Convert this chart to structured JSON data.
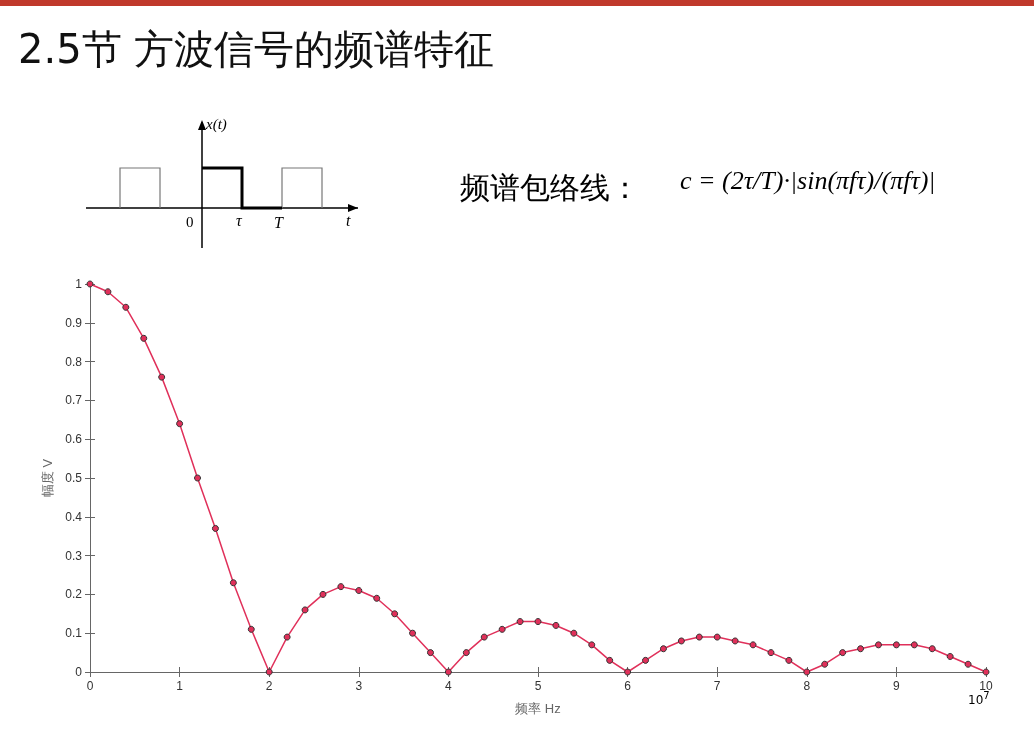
{
  "chart_data": {
    "type": "line",
    "title": "2.5节 方波信号的频谱特征",
    "xlabel": "频率 Hz",
    "ylabel": "幅度 V",
    "annotations": [
      "频谱包络线：",
      "c = (2τ/T)·|sin(πfτ)/(πfτ)|",
      "10$^{7}$",
      "x(t)",
      "0",
      "τ",
      "T",
      "t"
    ],
    "x": [
      0,
      0.2,
      0.4,
      0.6,
      0.8,
      1,
      1.2,
      1.4,
      1.6,
      1.8,
      2,
      2.2,
      2.4,
      2.6,
      2.8,
      3,
      3.2,
      3.4,
      3.6,
      3.8,
      4,
      4.2,
      4.4,
      4.6,
      4.8,
      5,
      5.2,
      5.4,
      5.6,
      5.8,
      6,
      6.2,
      6.4,
      6.6,
      6.8,
      7,
      7.2,
      7.4,
      7.6,
      7.8,
      8,
      8.2,
      8.4,
      8.6,
      8.8,
      9,
      9.2,
      9.4,
      9.6,
      9.8,
      10
    ],
    "series": [
      {
        "color": "#e0305a",
        "values": [
          1,
          0.98,
          0.94,
          0.86,
          0.76,
          0.64,
          0.5,
          0.37,
          0.23,
          0.11,
          0,
          0.09,
          0.16,
          0.2,
          0.22,
          0.21,
          0.19,
          0.15,
          0.1,
          0.05,
          0,
          0.05,
          0.09,
          0.11,
          0.13,
          0.13,
          0.12,
          0.1,
          0.07,
          0.03,
          0,
          0.03,
          0.06,
          0.08,
          0.09,
          0.09,
          0.08,
          0.07,
          0.05,
          0.03,
          0,
          0.02,
          0.05,
          0.06,
          0.07,
          0.07,
          0.07,
          0.06,
          0.04,
          0.02,
          0
        ]
      }
    ],
    "xlim": [
      0,
      10
    ],
    "xticks": [
      0,
      1,
      2,
      3,
      4,
      5,
      6,
      7,
      8,
      9,
      10
    ],
    "ylim": [
      0,
      1
    ],
    "yticks": [
      0,
      0.1,
      0.2,
      0.3,
      0.4,
      0.5,
      0.6,
      0.7,
      0.8,
      0.9,
      1
    ],
    "grid": false,
    "marker": "circle",
    "line_style": "solid"
  }
}
